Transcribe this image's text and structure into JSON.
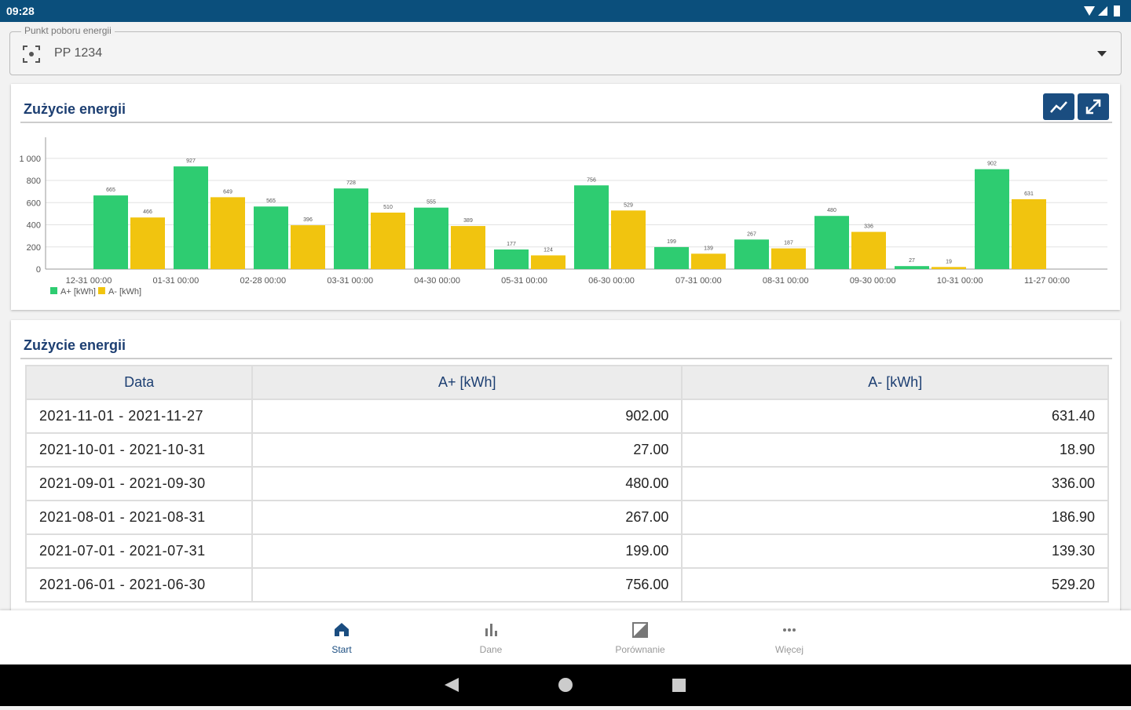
{
  "status": {
    "time": "09:28"
  },
  "selector": {
    "label": "Punkt poboru energii",
    "value": "PP 1234"
  },
  "chart_card": {
    "title": "Zużycie energii"
  },
  "chart_data": {
    "type": "bar",
    "categories": [
      "12-31 00:00",
      "01-31 00:00",
      "02-28 00:00",
      "03-31 00:00",
      "04-30 00:00",
      "05-31 00:00",
      "06-30 00:00",
      "07-31 00:00",
      "08-31 00:00",
      "09-30 00:00",
      "10-31 00:00",
      "11-27 00:00"
    ],
    "series": [
      {
        "name": "A+ [kWh]",
        "color": "#2ecc71",
        "values": [
          665,
          927,
          565,
          728,
          555,
          177,
          756,
          199,
          267,
          480,
          27,
          902
        ]
      },
      {
        "name": "A- [kWh]",
        "color": "#f1c40f",
        "values": [
          466,
          649,
          396,
          510,
          389,
          124,
          529,
          139,
          187,
          336,
          19,
          631
        ]
      }
    ],
    "ylim": [
      0,
      1190
    ],
    "yticks": [
      0,
      200,
      400,
      600,
      800,
      {
        "value": 1000,
        "label": "1 000"
      }
    ],
    "grid": true,
    "legend": "bottom-left"
  },
  "table_card": {
    "title": "Zużycie energii"
  },
  "table": {
    "columns": [
      "Data",
      "A+ [kWh]",
      "A- [kWh]"
    ],
    "rows": [
      [
        "2021-11-01 - 2021-11-27",
        "902.00",
        "631.40"
      ],
      [
        "2021-10-01 - 2021-10-31",
        "27.00",
        "18.90"
      ],
      [
        "2021-09-01 - 2021-09-30",
        "480.00",
        "336.00"
      ],
      [
        "2021-08-01 - 2021-08-31",
        "267.00",
        "186.90"
      ],
      [
        "2021-07-01 - 2021-07-31",
        "199.00",
        "139.30"
      ],
      [
        "2021-06-01 - 2021-06-30",
        "756.00",
        "529.20"
      ]
    ]
  },
  "nav": {
    "items": [
      "Start",
      "Dane",
      "Porównanie",
      "Więcej"
    ]
  }
}
